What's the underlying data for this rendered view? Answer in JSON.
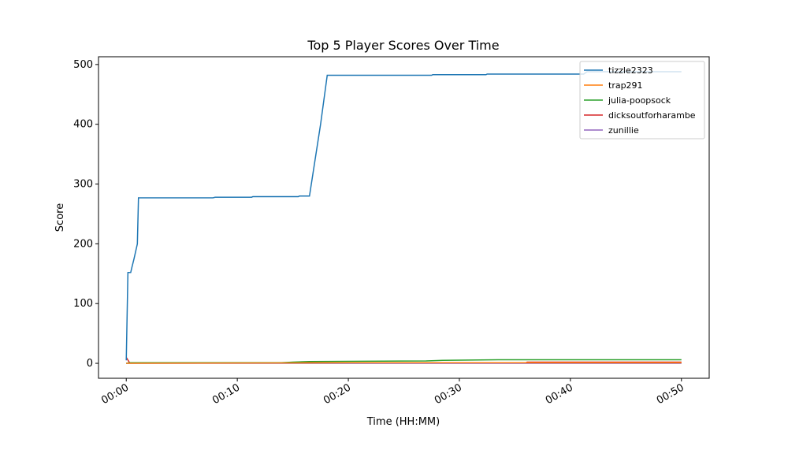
{
  "chart_data": {
    "type": "line",
    "title": "Top 5 Player Scores Over Time",
    "x_label": "Time (HH:MM)",
    "y_label": "Score",
    "xlim": [
      -2.5,
      52.5
    ],
    "ylim": [
      -25,
      513
    ],
    "xticks": [
      {
        "value": 0,
        "label": "00:00"
      },
      {
        "value": 10,
        "label": "00:10"
      },
      {
        "value": 20,
        "label": "00:20"
      },
      {
        "value": 30,
        "label": "00:30"
      },
      {
        "value": 40,
        "label": "00:40"
      },
      {
        "value": 50,
        "label": "00:50"
      }
    ],
    "yticks": [
      0,
      100,
      200,
      300,
      400,
      500
    ],
    "legend": "upper right",
    "series": [
      {
        "name": "tizzle2323",
        "color": "#1f77b4",
        "x": [
          0,
          0.15,
          0.4,
          0.5,
          0.7,
          1.0,
          1.1,
          7.8,
          8,
          11.3,
          11.4,
          15.5,
          15.6,
          16.5,
          17,
          17.5,
          18.1,
          27.5,
          27.6,
          32.4,
          32.5,
          41.2,
          41.5,
          50
        ],
        "values": [
          5,
          152,
          152,
          160,
          175,
          200,
          277,
          277,
          278,
          278,
          279,
          279,
          280,
          280,
          340,
          400,
          482,
          482,
          483,
          483,
          484,
          484,
          488,
          488
        ]
      },
      {
        "name": "trap291",
        "color": "#ff7f0e",
        "x": [
          0,
          20,
          50
        ],
        "values": [
          0,
          1,
          1
        ]
      },
      {
        "name": "julia-poopsock",
        "color": "#2ca02c",
        "x": [
          0,
          0.3,
          14,
          15,
          16.5,
          27,
          28.5,
          33.5,
          50
        ],
        "values": [
          0,
          1,
          1,
          2,
          3,
          4,
          5,
          6,
          6
        ]
      },
      {
        "name": "dicksoutforharambe",
        "color": "#d62728",
        "x": [
          0,
          0.3,
          36,
          36.1,
          50
        ],
        "values": [
          10,
          1,
          1,
          2,
          2
        ]
      },
      {
        "name": "zunillie",
        "color": "#9467bd",
        "x": [
          0,
          50
        ],
        "values": [
          0,
          0
        ]
      }
    ]
  }
}
